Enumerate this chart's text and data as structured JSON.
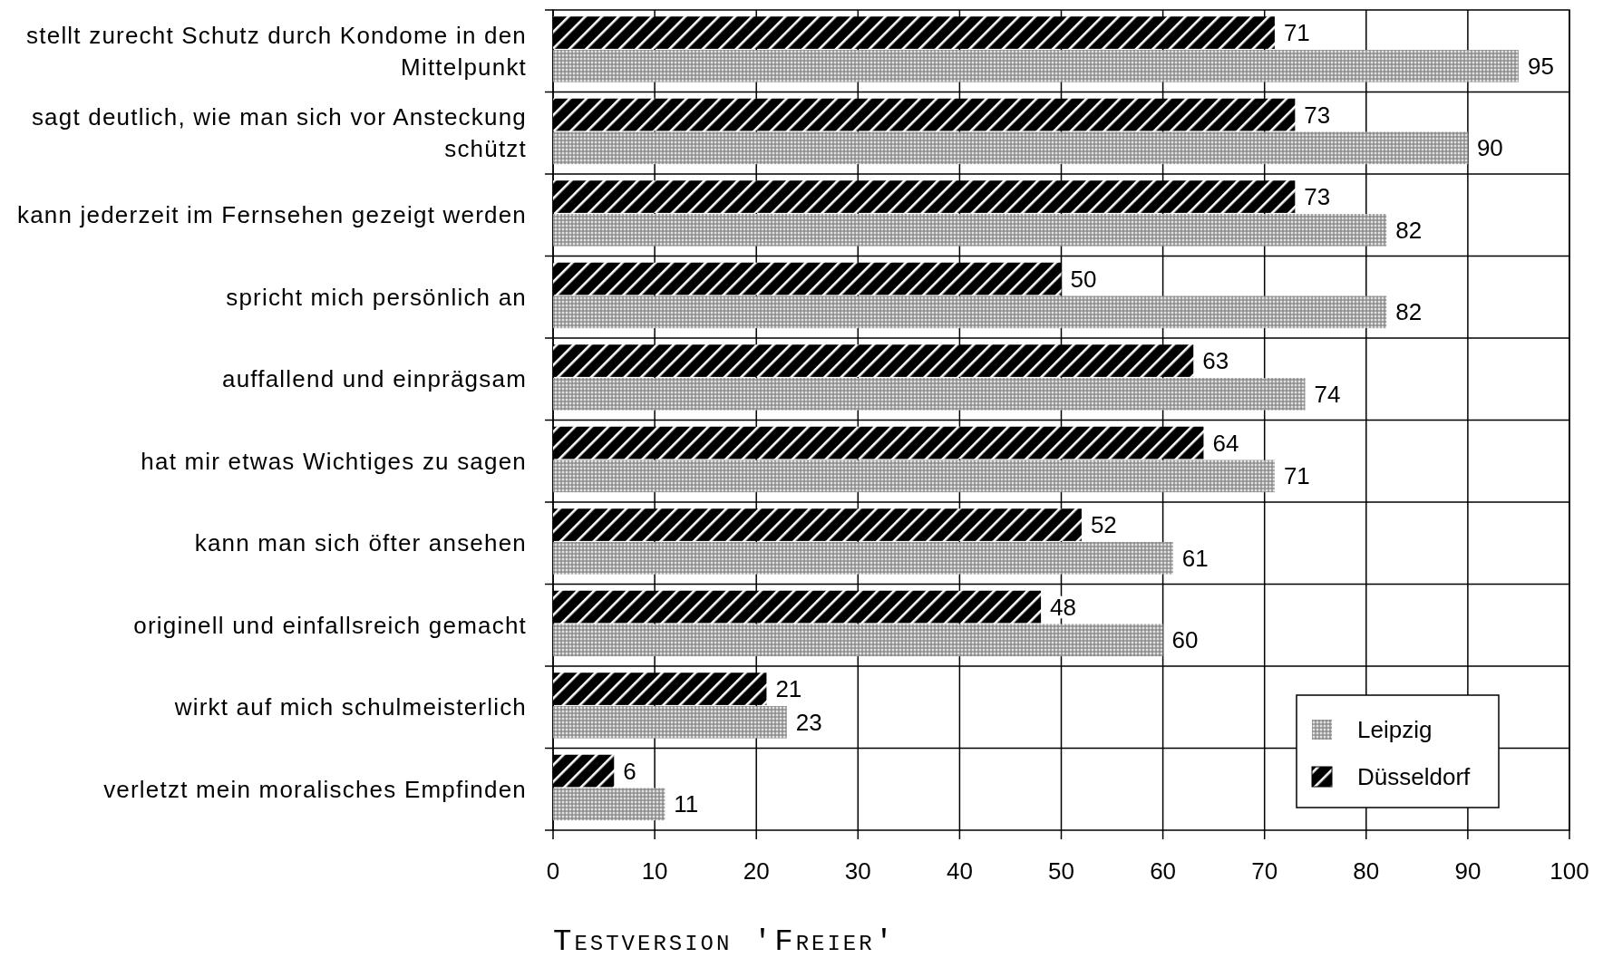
{
  "chart_data": {
    "type": "bar",
    "orientation": "horizontal",
    "categories": [
      "stellt zurecht Schutz durch Kondome in den Mittelpunkt",
      "sagt deutlich, wie man sich vor Ansteckung schützt",
      "kann jederzeit im Fernsehen gezeigt werden",
      "spricht mich persönlich an",
      "auffallend und einprägsam",
      "hat mir etwas Wichtiges zu sagen",
      "kann man sich öfter ansehen",
      "originell und einfallsreich gemacht",
      "wirkt auf mich schulmeisterlich",
      "verletzt mein moralisches Empfinden"
    ],
    "series": [
      {
        "name": "Düsseldorf",
        "color": "#000000",
        "values": [
          71,
          73,
          73,
          50,
          63,
          64,
          52,
          48,
          21,
          6
        ]
      },
      {
        "name": "Leipzig",
        "color": "#a6a6a6",
        "values": [
          95,
          90,
          82,
          82,
          74,
          71,
          61,
          60,
          23,
          11
        ]
      }
    ],
    "xlim": [
      0,
      100
    ],
    "xticks": [
      0,
      10,
      20,
      30,
      40,
      50,
      60,
      70,
      80,
      90,
      100
    ],
    "xlabel": "Testversion 'Freier'",
    "grid": true,
    "legend": "bottom right",
    "data_labels": true
  }
}
